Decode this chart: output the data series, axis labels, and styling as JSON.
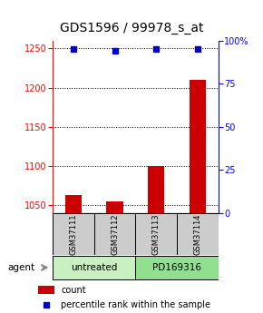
{
  "title": "GDS1596 / 99978_s_at",
  "samples": [
    "GSM37111",
    "GSM37112",
    "GSM37113",
    "GSM37114"
  ],
  "count_values": [
    1063,
    1055,
    1100,
    1210
  ],
  "percentile_values": [
    95,
    94,
    95,
    95
  ],
  "ylim_left": [
    1040,
    1260
  ],
  "ylim_right": [
    0,
    100
  ],
  "left_ticks": [
    1050,
    1100,
    1150,
    1200,
    1250
  ],
  "right_ticks": [
    0,
    25,
    50,
    75,
    100
  ],
  "right_tick_labels": [
    "0",
    "25",
    "50",
    "75",
    "100%"
  ],
  "groups": [
    {
      "label": "untreated",
      "samples": [
        0,
        1
      ],
      "color": "#c8f0c0"
    },
    {
      "label": "PD169316",
      "samples": [
        2,
        3
      ],
      "color": "#90e090"
    }
  ],
  "bar_color": "#cc0000",
  "dot_color": "#0000cc",
  "title_fontsize": 10,
  "tick_fontsize": 7,
  "background_color": "#ffffff",
  "plot_bg": "#ffffff",
  "sample_box_color": "#cccccc",
  "bar_width": 0.4
}
